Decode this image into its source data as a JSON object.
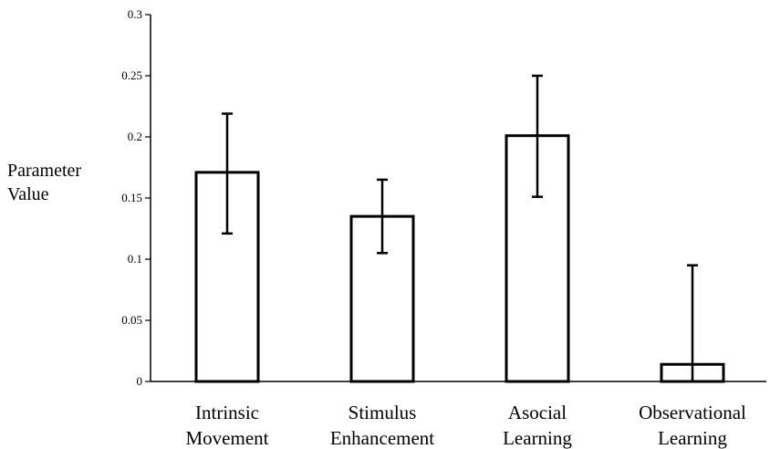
{
  "chart_data": {
    "type": "bar",
    "title": "",
    "ylabel": [
      "Parameter",
      "Value"
    ],
    "xlabel": "",
    "categories": [
      [
        "Intrinsic",
        "Movement"
      ],
      [
        "Stimulus",
        "Enhancement"
      ],
      [
        "Asocial",
        "Learning"
      ],
      [
        "Observational",
        "Learning"
      ]
    ],
    "values": [
      0.171,
      0.135,
      0.201,
      0.014
    ],
    "error_bars": [
      {
        "low": 0.121,
        "high": 0.219
      },
      {
        "low": 0.105,
        "high": 0.165
      },
      {
        "low": 0.151,
        "high": 0.25
      },
      {
        "low": 0.0,
        "high": 0.095
      }
    ],
    "ylim": [
      0,
      0.3
    ],
    "yticks": [
      {
        "value": 0,
        "label": "0"
      },
      {
        "value": 0.05,
        "label": "0.05"
      },
      {
        "value": 0.1,
        "label": "0.1"
      },
      {
        "value": 0.15,
        "label": "0.15"
      },
      {
        "value": 0.2,
        "label": "0.2"
      },
      {
        "value": 0.25,
        "label": "0.25"
      },
      {
        "value": 0.3,
        "label": "0.3"
      }
    ],
    "grid": false,
    "bar_fill": "#ffffff",
    "bar_stroke": "#000000"
  }
}
